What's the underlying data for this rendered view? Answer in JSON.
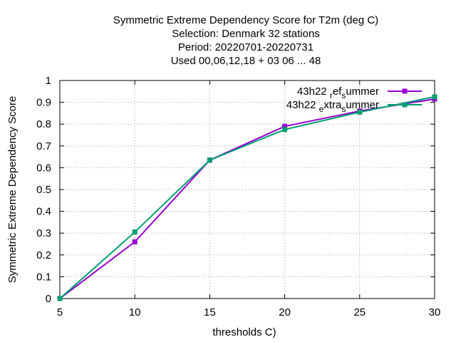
{
  "chart_data": {
    "type": "line",
    "title_lines": [
      "Symmetric Extreme Dependency Score  for T2m (deg C)",
      "Selection: Denmark      32 stations",
      "Period: 20220701-20220731",
      "Used  00,06,12,18  + 03 06 ... 48"
    ],
    "xlabel": "thresholds C)",
    "ylabel": "Symmetric Extreme Dependency Score",
    "xlim": [
      5,
      30
    ],
    "ylim": [
      0,
      1
    ],
    "xticks": [
      5,
      10,
      15,
      20,
      25,
      30
    ],
    "yticks": [
      0,
      0.1,
      0.2,
      0.3,
      0.4,
      0.5,
      0.6,
      0.7,
      0.8,
      0.9,
      1
    ],
    "ytick_labels": [
      "0",
      "0.1",
      "0.2",
      "0.3",
      "0.4",
      "0.5",
      "0.6",
      "0.7",
      "0.8",
      "0.9",
      "1"
    ],
    "grid": true,
    "legend_position": "top-right",
    "x": [
      5,
      10,
      15,
      20,
      25,
      30
    ],
    "series": [
      {
        "name": "43h22_ref_summer",
        "legend_text": {
          "base": "43h22 ",
          "sub1": "r",
          "mid": "ef",
          "sub2": "s",
          "end": "ummer"
        },
        "color": "#9400d3",
        "marker": "square",
        "values": [
          0.0,
          0.26,
          0.635,
          0.79,
          0.86,
          0.915
        ]
      },
      {
        "name": "43h22_extra_summer",
        "legend_text": {
          "base": "43h22 ",
          "sub1": "e",
          "mid": "xtra",
          "sub2": "s",
          "end": "ummer"
        },
        "color": "#009e73",
        "marker": "square",
        "values": [
          0.0,
          0.305,
          0.635,
          0.775,
          0.855,
          0.925
        ]
      }
    ]
  }
}
